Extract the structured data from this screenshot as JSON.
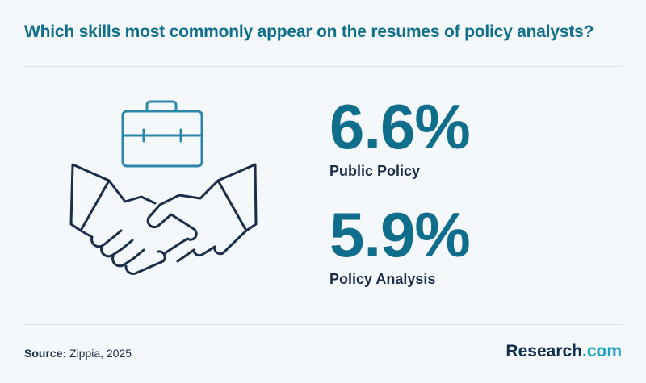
{
  "title": "Which skills most commonly appear on the resumes of policy analysts?",
  "stats": [
    {
      "value": "6.6%",
      "label": "Public Policy"
    },
    {
      "value": "5.9%",
      "label": "Policy Analysis"
    }
  ],
  "footer": {
    "source_label": "Source:",
    "source_text": " Zippia, 2025",
    "brand_main": "Research",
    "brand_suffix": ".com"
  },
  "illustration": {
    "icons": [
      "briefcase-icon",
      "handshake-icon"
    ]
  },
  "colors": {
    "accent": "#0e6e8c",
    "dark": "#1a2e4a",
    "brand_accent": "#1aa3c7",
    "background": "#f5f8fa"
  }
}
